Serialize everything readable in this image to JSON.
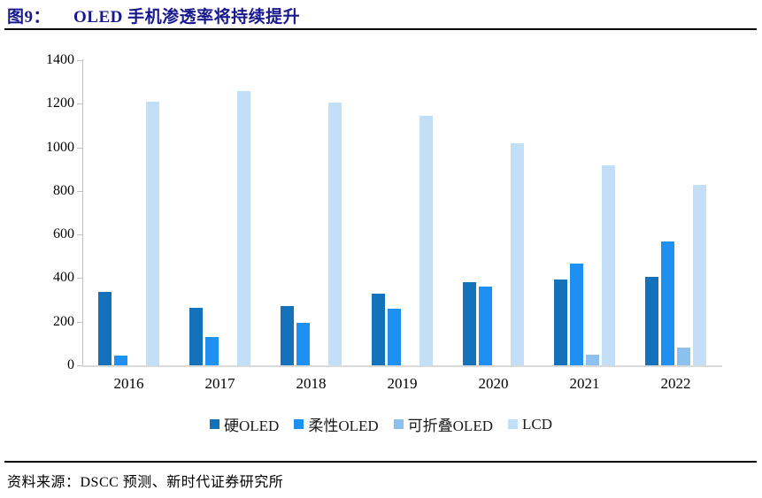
{
  "title": {
    "label": "图9：",
    "text": "OLED 手机渗透率将持续提升"
  },
  "source": "资料来源：DSCC 预测、新时代证券研究所",
  "colors": {
    "title_navy": "#18188F",
    "axis_gray": "#bfbfbf",
    "baseline_gray": "#d9d9d9",
    "hard_oled": "#1372B9",
    "flexible_oled": "#1E90F2",
    "foldable_oled": "#8CC0EE",
    "lcd": "#C2DFF7"
  },
  "chart_data": {
    "type": "bar",
    "title": "OLED 手机渗透率将持续提升",
    "categories": [
      "2016",
      "2017",
      "2018",
      "2019",
      "2020",
      "2021",
      "2022"
    ],
    "series": [
      {
        "name": "硬OLED",
        "color": "#1372B9",
        "values": [
          335,
          265,
          270,
          330,
          380,
          395,
          405
        ]
      },
      {
        "name": "柔性OLED",
        "color": "#1E90F2",
        "values": [
          45,
          130,
          195,
          260,
          360,
          465,
          570
        ]
      },
      {
        "name": "可折叠OLED",
        "color": "#8CC0EE",
        "values": [
          0,
          0,
          0,
          0,
          0,
          50,
          80
        ]
      },
      {
        "name": "LCD",
        "color": "#C2DFF7",
        "values": [
          1210,
          1258,
          1205,
          1143,
          1018,
          918,
          828
        ]
      }
    ],
    "xlabel": "",
    "ylabel": "",
    "ylim": [
      0,
      1400
    ],
    "yticks": [
      0,
      200,
      400,
      600,
      800,
      1000,
      1200,
      1400
    ],
    "grid": false,
    "legend_position": "bottom"
  }
}
